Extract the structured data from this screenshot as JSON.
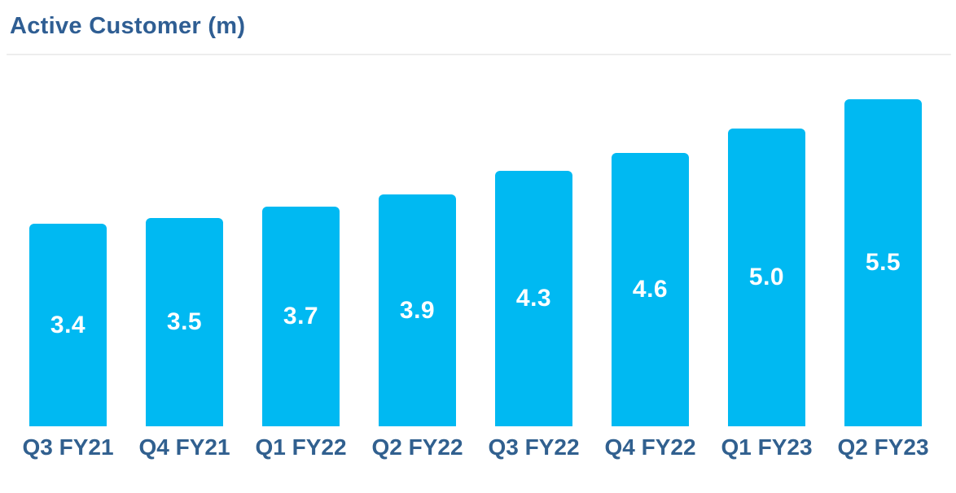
{
  "header": {
    "title": "Active Customer (m)"
  },
  "chart_data": {
    "type": "bar",
    "title": "Active Customer (m)",
    "categories": [
      "Q3 FY21",
      "Q4 FY21",
      "Q1 FY22",
      "Q2 FY22",
      "Q3 FY22",
      "Q4 FY22",
      "Q1 FY23",
      "Q2 FY23"
    ],
    "values": [
      3.4,
      3.5,
      3.7,
      3.9,
      4.3,
      4.6,
      5.0,
      5.5
    ],
    "value_labels": [
      "3.4",
      "3.5",
      "3.7",
      "3.9",
      "4.3",
      "4.6",
      "5.0",
      "5.5"
    ],
    "xlabel": "",
    "ylabel": "",
    "ylim": [
      0,
      6
    ],
    "grid": false,
    "legend": false,
    "value_label_position": "center-inside",
    "colors": {
      "bar": "#00b9f2",
      "value_label": "#ffffff",
      "title_text": "#2f5e93",
      "category_label": "#31608f",
      "divider": "#ededed",
      "background": "#ffffff"
    }
  }
}
